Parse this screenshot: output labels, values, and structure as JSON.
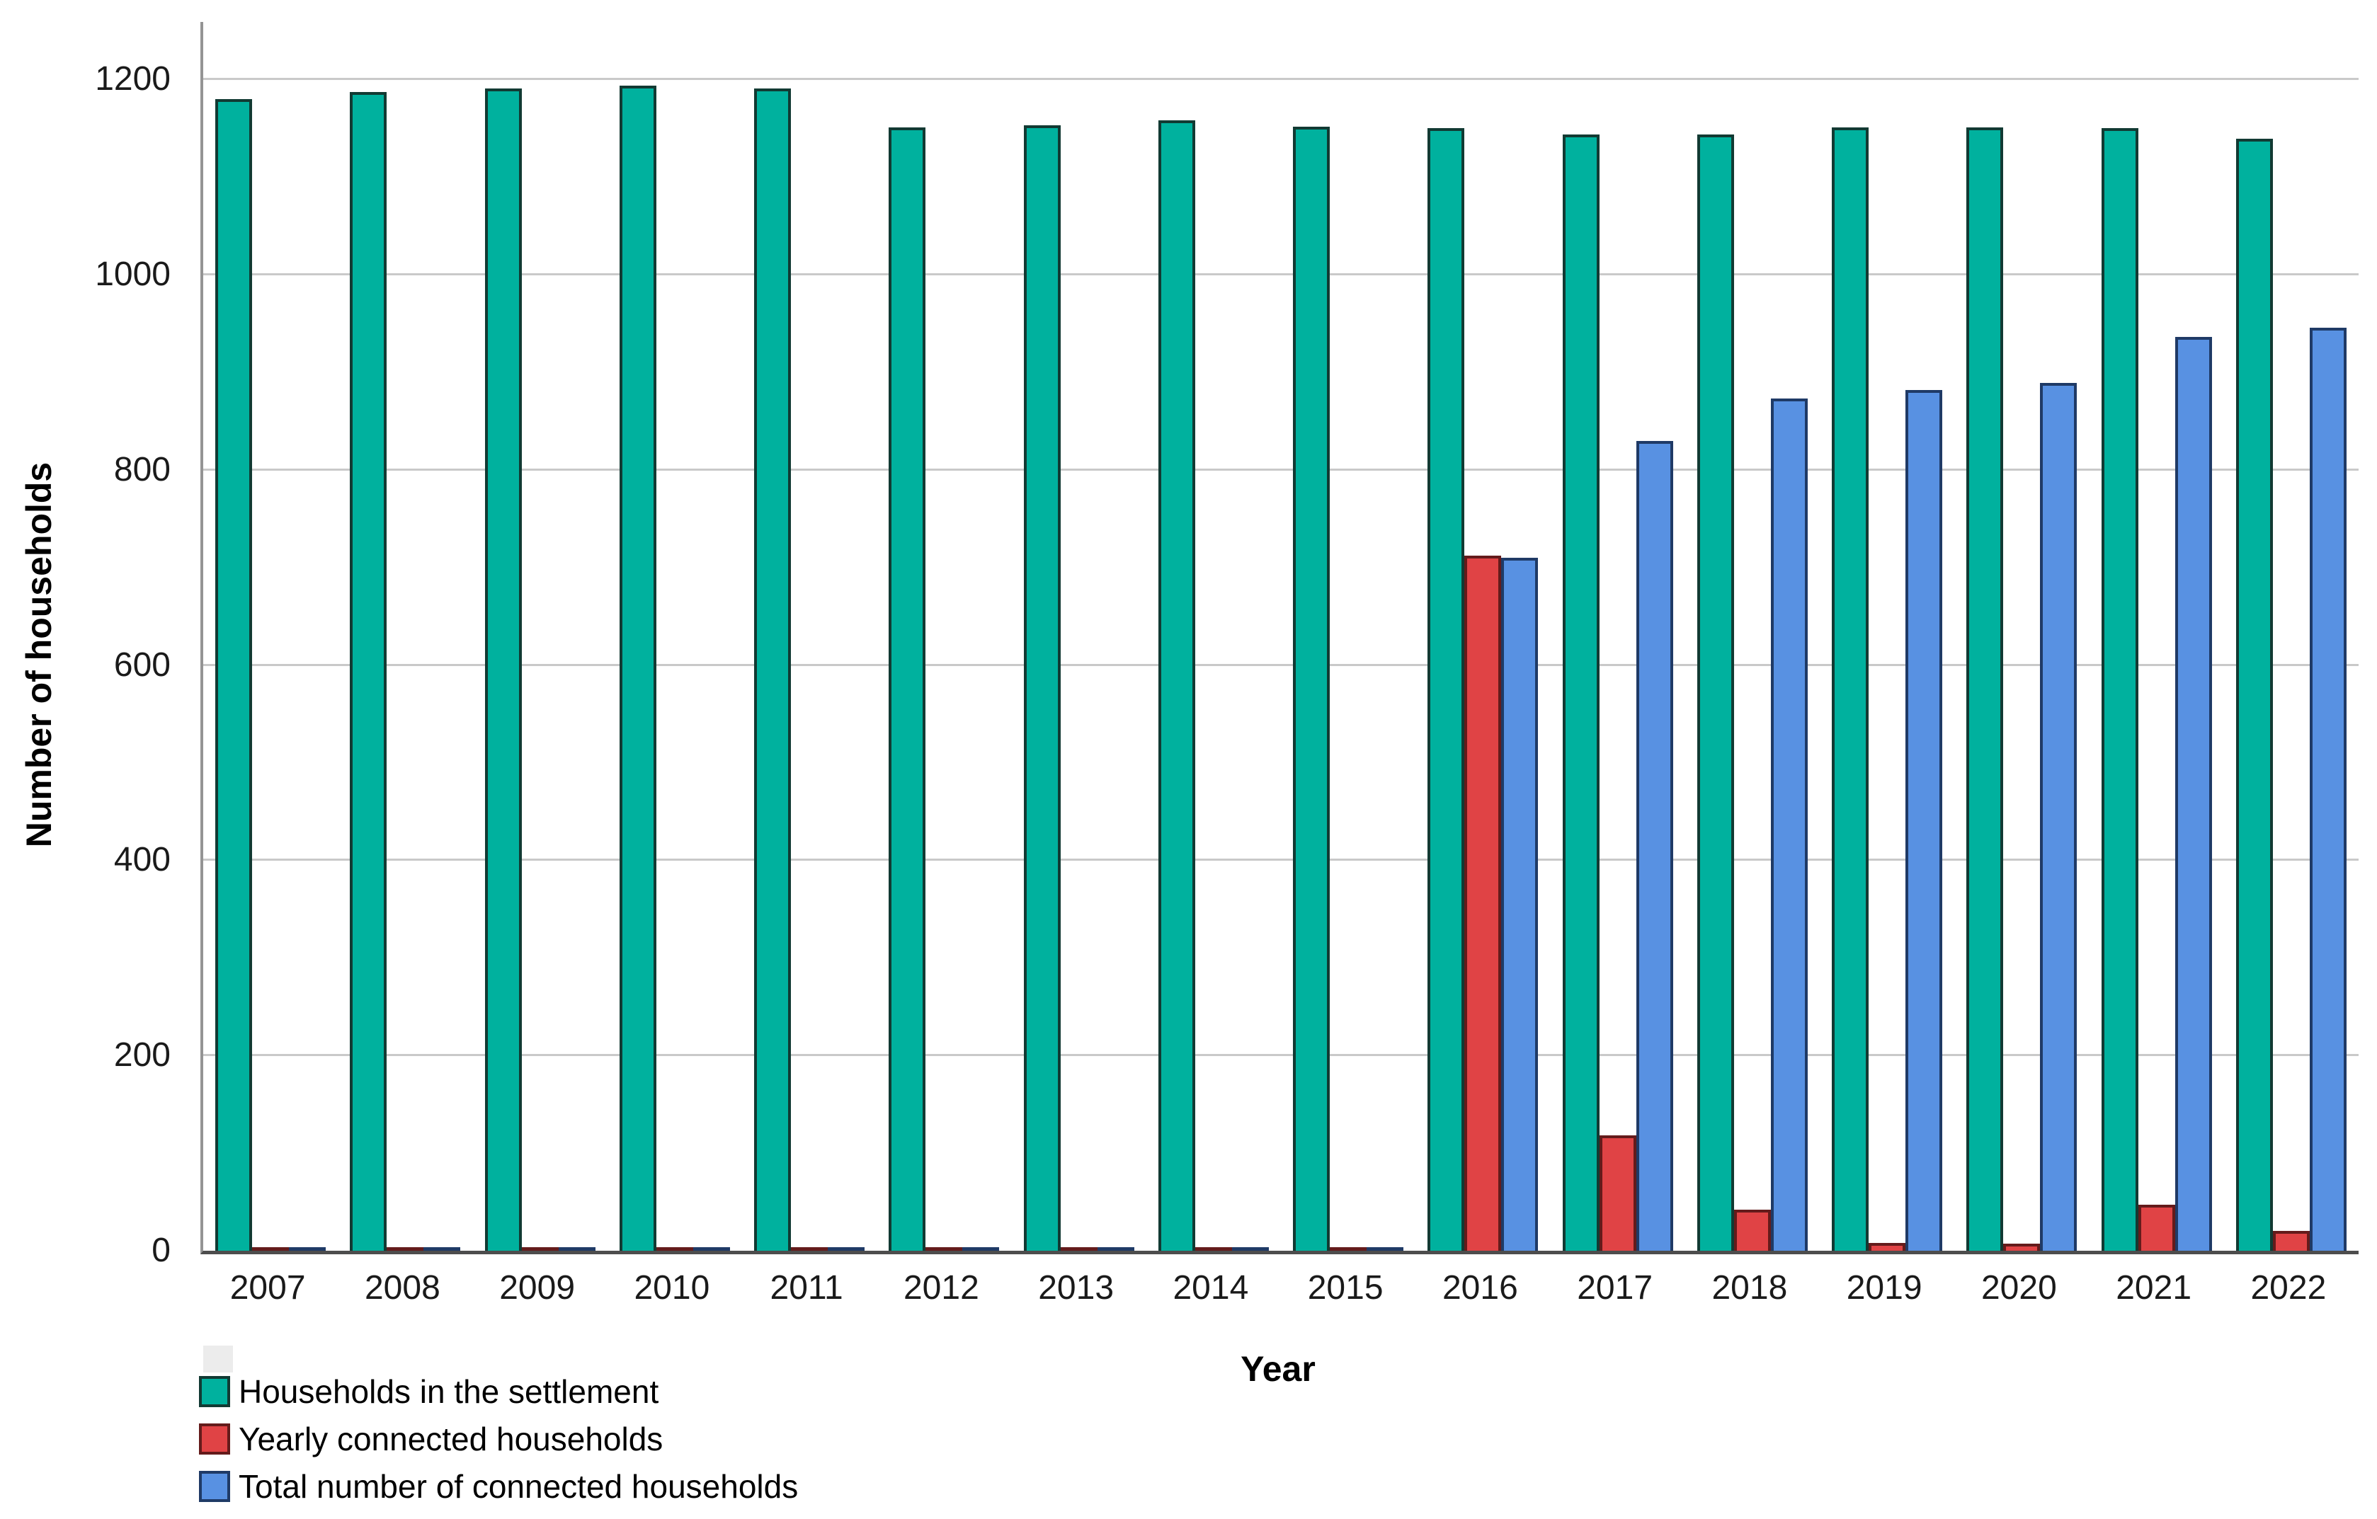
{
  "chart_data": {
    "type": "bar",
    "title": "",
    "xlabel": "Year",
    "ylabel": "Number of households",
    "categories": [
      "2007",
      "2008",
      "2009",
      "2010",
      "2011",
      "2012",
      "2013",
      "2014",
      "2015",
      "2016",
      "2017",
      "2018",
      "2019",
      "2020",
      "2021",
      "2022"
    ],
    "series": [
      {
        "name": "Households in the settlement",
        "color": "#00B19E",
        "border_color": "#123A33",
        "values": [
          1180,
          1187,
          1191,
          1194,
          1191,
          1151,
          1153,
          1158,
          1152,
          1150,
          1144,
          1144,
          1151,
          1151,
          1150,
          1139
        ]
      },
      {
        "name": "Yearly connected households",
        "color": "#E04345",
        "border_color": "#641B1B",
        "values": [
          0,
          0,
          0,
          0,
          0,
          0,
          0,
          0,
          0,
          712,
          118,
          42,
          8,
          7,
          47,
          20
        ]
      },
      {
        "name": "Total number of connected households",
        "color": "#5891E2",
        "border_color": "#1F3A66",
        "values": [
          0,
          0,
          0,
          0,
          0,
          0,
          0,
          0,
          0,
          710,
          830,
          873,
          882,
          889,
          936,
          946
        ]
      }
    ],
    "y_ticks": [
      0,
      200,
      400,
      600,
      800,
      1000,
      1200
    ],
    "ylim": [
      0,
      1259
    ],
    "grid": "horizontal",
    "legend_position": "bottom-left",
    "axis_colors": {
      "gridline": "#c9c9c9",
      "y_axis_line": "#949494",
      "x_axis_line": "#4d4d4d",
      "tick_text": "#1a1a1a"
    }
  }
}
